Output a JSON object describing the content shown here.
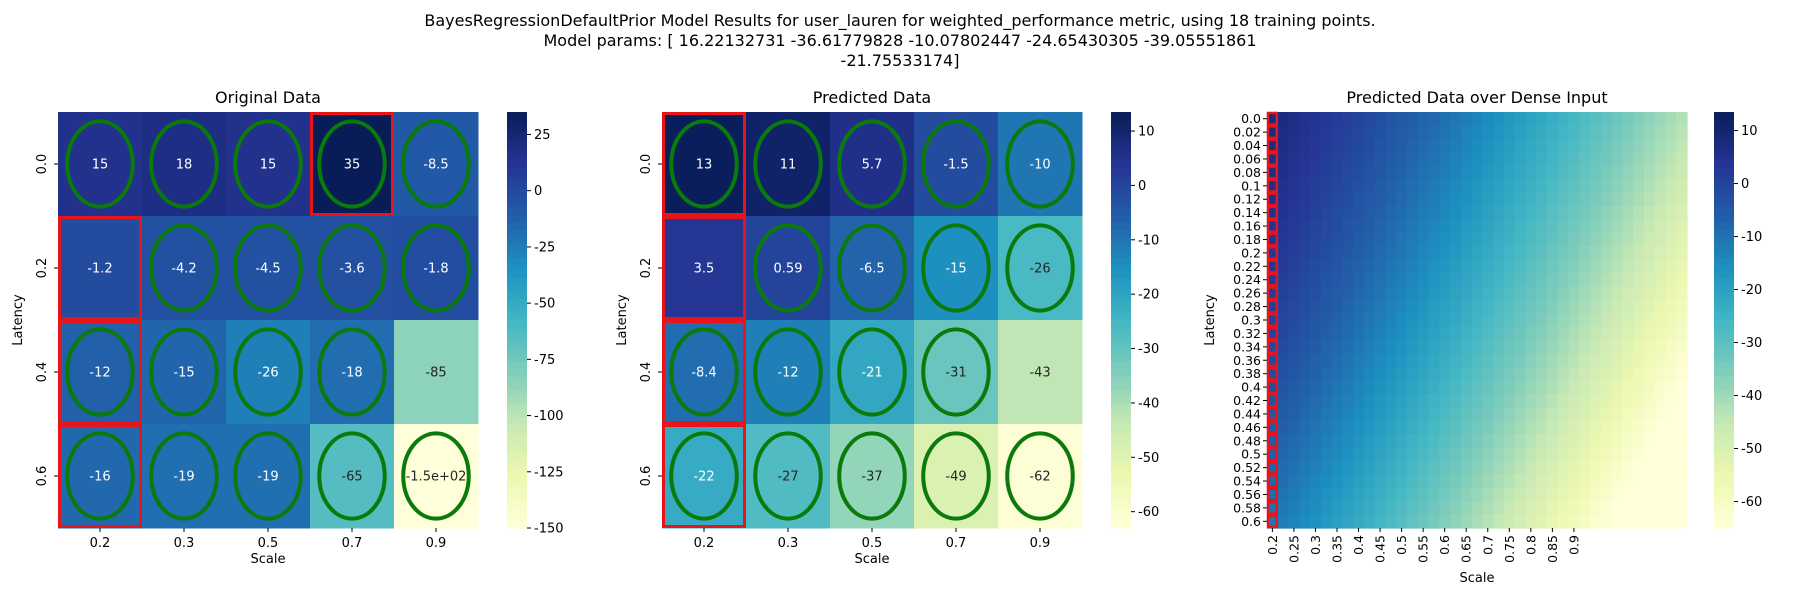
{
  "figure": {
    "suptitle_lines": [
      "BayesRegressionDefaultPrior Model Results for user_lauren for weighted_performance metric, using 18 training points.",
      "Model params: [ 16.22132731 -36.61779828 -10.07802447 -24.65430305 -39.05551861",
      "-21.75533174]"
    ]
  },
  "chart_data": [
    {
      "type": "heatmap",
      "title": "Original Data",
      "xlabel": "Scale",
      "ylabel": "Latency",
      "x_categories": [
        "0.2",
        "0.3",
        "0.5",
        "0.7",
        "0.9"
      ],
      "y_categories": [
        "0.0",
        "0.2",
        "0.4",
        "0.6"
      ],
      "values": [
        [
          15,
          18,
          15,
          35,
          -8.5
        ],
        [
          -1.2,
          -4.2,
          -4.5,
          -3.6,
          -1.8
        ],
        [
          -12,
          -15,
          -26,
          -18,
          -85
        ],
        [
          -16,
          -19,
          -19,
          -65,
          -150
        ]
      ],
      "annotations": [
        [
          "15",
          "18",
          "15",
          "35",
          "-8.5"
        ],
        [
          "-1.2",
          "-4.2",
          "-4.5",
          "-3.6",
          "-1.8"
        ],
        [
          "-12",
          "-15",
          "-26",
          "-18",
          "-85"
        ],
        [
          "-16",
          "-19",
          "-19",
          "-65",
          "-1.5e+02"
        ]
      ],
      "colormap": "YlGnBu",
      "vmin": -150,
      "vmax": 35,
      "colorbar_ticks": [
        25,
        0,
        -25,
        -50,
        -75,
        -100,
        -125,
        -150
      ],
      "circled_cells": [
        [
          0,
          0
        ],
        [
          0,
          1
        ],
        [
          0,
          2
        ],
        [
          0,
          3
        ],
        [
          0,
          4
        ],
        [
          1,
          1
        ],
        [
          1,
          2
        ],
        [
          1,
          3
        ],
        [
          1,
          4
        ],
        [
          2,
          0
        ],
        [
          2,
          1
        ],
        [
          2,
          2
        ],
        [
          2,
          3
        ],
        [
          3,
          0
        ],
        [
          3,
          1
        ],
        [
          3,
          2
        ],
        [
          3,
          3
        ],
        [
          3,
          4
        ]
      ],
      "boxed_cells": [
        [
          0,
          3
        ],
        [
          1,
          0
        ],
        [
          2,
          0
        ],
        [
          3,
          0
        ]
      ],
      "circle_color": "#0a7a0a",
      "box_color": "#e8141a"
    },
    {
      "type": "heatmap",
      "title": "Predicted Data",
      "xlabel": "Scale",
      "ylabel": "Latency",
      "x_categories": [
        "0.2",
        "0.3",
        "0.5",
        "0.7",
        "0.9"
      ],
      "y_categories": [
        "0.0",
        "0.2",
        "0.4",
        "0.6"
      ],
      "values": [
        [
          13,
          11,
          5.7,
          -1.5,
          -10
        ],
        [
          3.5,
          0.59,
          -6.5,
          -15,
          -26
        ],
        [
          -8.4,
          -12,
          -21,
          -31,
          -43
        ],
        [
          -22,
          -27,
          -37,
          -49,
          -62
        ]
      ],
      "annotations": [
        [
          "13",
          "11",
          "5.7",
          "-1.5",
          "-10"
        ],
        [
          "3.5",
          "0.59",
          "-6.5",
          "-15",
          "-26"
        ],
        [
          "-8.4",
          "-12",
          "-21",
          "-31",
          "-43"
        ],
        [
          "-22",
          "-27",
          "-37",
          "-49",
          "-62"
        ]
      ],
      "colormap": "YlGnBu",
      "vmin": -63,
      "vmax": 13.5,
      "colorbar_ticks": [
        10,
        0,
        -10,
        -20,
        -30,
        -40,
        -50,
        -60
      ],
      "circled_cells": [
        [
          0,
          0
        ],
        [
          0,
          1
        ],
        [
          0,
          2
        ],
        [
          0,
          3
        ],
        [
          0,
          4
        ],
        [
          1,
          1
        ],
        [
          1,
          2
        ],
        [
          1,
          3
        ],
        [
          1,
          4
        ],
        [
          2,
          0
        ],
        [
          2,
          1
        ],
        [
          2,
          2
        ],
        [
          2,
          3
        ],
        [
          3,
          0
        ],
        [
          3,
          1
        ],
        [
          3,
          2
        ],
        [
          3,
          3
        ],
        [
          3,
          4
        ]
      ],
      "boxed_cells": [
        [
          0,
          0
        ],
        [
          1,
          0
        ],
        [
          2,
          0
        ],
        [
          3,
          0
        ]
      ],
      "circle_color": "#0a7a0a",
      "box_color": "#e8141a"
    },
    {
      "type": "heatmap",
      "title": "Predicted Data over Dense Input",
      "xlabel": "Scale",
      "ylabel": "Latency",
      "x_categories": [
        "0.2",
        "0.25",
        "0.3",
        "0.35",
        "0.4",
        "0.45",
        "0.5",
        "0.55",
        "0.6",
        "0.65",
        "0.7",
        "0.75",
        "0.8",
        "0.85",
        "0.9"
      ],
      "y_categories": [
        "0.0",
        "0.02",
        "0.04",
        "0.06",
        "0.08",
        "0.1",
        "0.12",
        "0.14",
        "0.16",
        "0.18",
        "0.2",
        "0.22",
        "0.24",
        "0.26",
        "0.28",
        "0.3",
        "0.32",
        "0.34",
        "0.36",
        "0.38",
        "0.4",
        "0.42",
        "0.44",
        "0.46",
        "0.48",
        "0.5",
        "0.52",
        "0.54",
        "0.56",
        "0.58",
        "0.6"
      ],
      "model": "value = 16.22132731 - 36.61779828*scale - 10.07802447*latency - 24.65430305*scale^2 - 39.05551861*scale*latency - 21.75533174*latency^2",
      "x_range": [
        0.2,
        0.97
      ],
      "y_range": [
        0.0,
        0.6
      ],
      "colormap": "YlGnBu",
      "vmin": -65,
      "vmax": 13.5,
      "colorbar_ticks": [
        10,
        0,
        -10,
        -20,
        -30,
        -40,
        -50,
        -60
      ],
      "boxed_column": "0.2",
      "box_color": "#e8141a"
    }
  ]
}
